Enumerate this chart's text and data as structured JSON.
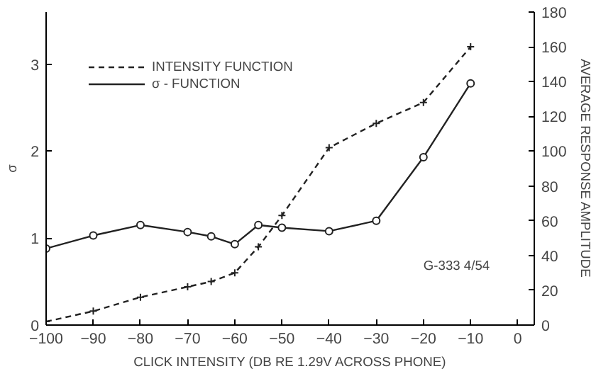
{
  "chart_data": {
    "type": "line",
    "xlabel": "CLICK INTENSITY (DB RE 1.29V ACROSS PHONE)",
    "ylabel": "σ",
    "y2label": "AVERAGE RESPONSE AMPLITUDE",
    "x": [
      -100,
      -90,
      -80,
      -70,
      -65,
      -60,
      -55,
      -50,
      -40,
      -30,
      -20,
      -10
    ],
    "series": [
      {
        "name": "INTENSITY FUNCTION",
        "color": "#222222",
        "axis": "y2",
        "line_style": "dashed",
        "marker": "cross",
        "values": [
          2,
          8,
          16,
          22,
          25,
          30,
          45,
          63,
          102,
          116,
          128,
          160
        ]
      },
      {
        "name": "σ - FUNCTION",
        "color": "#222222",
        "line_style": "solid",
        "marker": "circle",
        "values": [
          0.88,
          1.03,
          1.15,
          1.07,
          1.02,
          0.93,
          1.15,
          1.12,
          1.08,
          1.2,
          1.93,
          2.78
        ]
      }
    ],
    "xlim": [
      -100,
      3.5
    ],
    "xticks": [
      -100,
      -90,
      -80,
      -70,
      -60,
      -50,
      -40,
      -30,
      -20,
      -10,
      0
    ],
    "ylim": [
      0,
      3.6
    ],
    "yticks": [
      0,
      1,
      2,
      3
    ],
    "y2lim": [
      0,
      180
    ],
    "y2ticks": [
      0,
      20,
      40,
      60,
      80,
      100,
      120,
      140,
      160,
      180
    ],
    "grid": false,
    "legend": "top left",
    "annotations": [
      "G-333 4/54"
    ]
  }
}
